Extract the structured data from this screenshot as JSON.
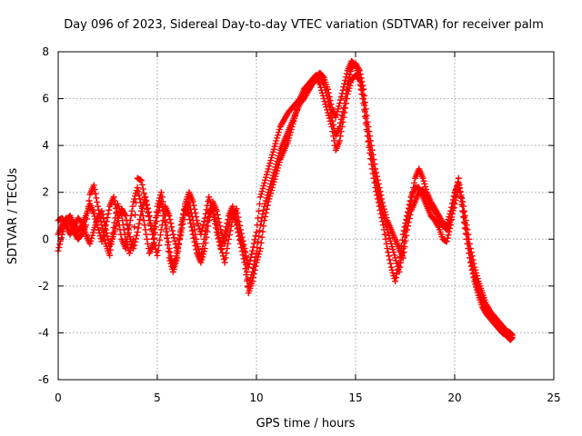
{
  "chart_data": {
    "type": "scatter",
    "title": "Day 096 of 2023, Sidereal Day-to-day VTEC variation (SDTVAR) for receiver palm",
    "xlabel": "GPS time / hours",
    "ylabel": "SDTVAR / TECUs",
    "xlim": [
      0,
      25
    ],
    "ylim": [
      -6,
      8
    ],
    "x_ticks": [
      "0",
      "5",
      "10",
      "15",
      "20",
      "25"
    ],
    "y_ticks": [
      "8",
      "6",
      "4",
      "2",
      "0",
      "-2",
      "-4",
      "-6"
    ],
    "grid": true,
    "marker": "+",
    "color": "#ff0000",
    "series": [
      {
        "name": "receiver palm",
        "trace_hours": [
          0.0,
          0.2,
          0.4,
          0.6,
          0.8,
          1.0,
          1.2,
          1.4,
          1.6,
          1.8,
          2.0,
          2.2,
          2.4,
          2.6,
          2.8,
          3.0,
          3.2,
          3.4,
          3.6,
          3.8,
          4.0,
          4.2,
          4.4,
          4.6,
          4.8,
          5.0,
          5.2,
          5.4,
          5.6,
          5.8,
          6.0,
          6.2,
          6.4,
          6.6,
          6.8,
          7.0,
          7.2,
          7.4,
          7.6,
          7.8,
          8.0,
          8.2,
          8.4,
          8.6,
          8.8,
          9.0,
          9.2,
          9.4,
          9.6,
          9.8,
          10.0,
          10.2,
          10.4,
          10.6,
          10.8,
          11.0,
          11.2,
          11.4,
          11.6,
          11.8,
          12.0,
          12.2,
          12.4,
          12.6,
          12.8,
          13.0,
          13.2,
          13.4,
          13.6,
          13.8,
          14.0,
          14.2,
          14.4,
          14.6,
          14.8,
          15.0,
          15.2,
          15.4,
          15.6,
          15.8,
          16.0,
          16.2,
          16.4,
          16.6,
          16.8,
          17.0,
          17.2,
          17.4,
          17.6,
          17.8,
          18.0,
          18.2,
          18.4,
          18.6,
          18.8,
          19.0,
          19.2,
          19.4,
          19.6,
          19.8,
          20.0,
          20.2,
          20.4,
          20.6,
          20.8,
          21.0,
          21.2,
          21.4,
          21.6,
          21.8,
          22.0,
          22.2,
          22.4,
          22.6,
          22.8,
          22.9
        ],
        "traces": [
          [
            0.8,
            0.9,
            0.6,
            0.2,
            0.5,
            0.9,
            0.7,
            0.2,
            -0.2,
            0.4,
            0.9,
            1.2,
            0.4,
            -0.3,
            0.2,
            0.8,
            1.3,
            1.0,
            0.1,
            -0.4,
            0.3,
            1.2,
            1.8,
            1.0,
            0.0,
            -0.7,
            0.4,
            1.4,
            1.0,
            0.2,
            -0.5,
            0.3,
            1.2,
            1.6,
            0.8,
            -0.2,
            -0.8,
            0.2,
            1.1,
            1.4,
            0.6,
            -0.3,
            -1.0,
            0.0,
            0.9,
            1.3,
            0.4,
            -0.4,
            -1.2,
            -0.5,
            0.3,
            1.8,
            2.4,
            3.0,
            3.6,
            4.2,
            4.8,
            5.1,
            5.4,
            5.6,
            5.8,
            6.0,
            6.2,
            6.4,
            6.6,
            6.8,
            7.0,
            6.6,
            6.0,
            5.2,
            4.4,
            4.8,
            5.6,
            6.6,
            7.3,
            7.5,
            7.2,
            6.4,
            5.0,
            4.0,
            3.0,
            2.2,
            1.4,
            0.8,
            0.4,
            0.0,
            -0.4,
            -0.8,
            0.4,
            1.2,
            1.6,
            2.0,
            2.1,
            1.8,
            1.4,
            1.2,
            0.9,
            0.6,
            0.4,
            0.8,
            1.5,
            2.3,
            1.6,
            0.6,
            -0.4,
            -1.2,
            -1.8,
            -2.3,
            -2.8,
            -3.1,
            -3.3,
            -3.5,
            -3.7,
            -3.9,
            -4.0,
            -4.1
          ],
          [
            0.2,
            0.6,
            0.9,
            0.7,
            0.3,
            0.0,
            0.2,
            0.6,
            1.9,
            2.3,
            1.4,
            0.6,
            -0.2,
            -0.7,
            0.5,
            1.5,
            1.0,
            0.0,
            -0.6,
            0.0,
            2.6,
            2.5,
            1.6,
            0.8,
            0.2,
            1.4,
            2.0,
            1.0,
            -0.4,
            -1.2,
            -0.6,
            0.4,
            1.5,
            2.0,
            1.6,
            0.8,
            0.2,
            0.9,
            1.8,
            1.2,
            0.3,
            -0.4,
            0.2,
            1.0,
            1.4,
            0.8,
            0.0,
            -0.5,
            -2.0,
            -1.4,
            -0.6,
            0.6,
            1.4,
            2.0,
            2.6,
            3.2,
            3.8,
            4.2,
            4.6,
            5.0,
            5.4,
            5.8,
            6.0,
            6.3,
            6.6,
            6.9,
            7.1,
            6.9,
            6.4,
            5.6,
            5.2,
            5.8,
            6.5,
            7.2,
            7.6,
            7.4,
            6.9,
            6.0,
            4.6,
            3.6,
            2.6,
            1.8,
            1.0,
            0.4,
            -0.2,
            -0.8,
            -1.4,
            -0.4,
            0.8,
            1.6,
            2.6,
            3.0,
            2.6,
            2.0,
            1.6,
            1.3,
            1.0,
            0.7,
            0.6,
            1.2,
            2.0,
            2.4,
            1.4,
            0.2,
            -0.8,
            -1.6,
            -2.2,
            -2.6,
            -2.9,
            -3.2,
            -3.5,
            -3.7,
            -3.9,
            -4.1,
            -4.2,
            -4.2
          ],
          [
            -0.5,
            0.2,
            0.8,
            1.0,
            0.6,
            0.3,
            0.6,
            1.0,
            1.5,
            1.1,
            0.5,
            -0.1,
            0.6,
            1.4,
            1.8,
            1.0,
            0.0,
            -0.4,
            0.6,
            1.6,
            2.2,
            1.4,
            0.4,
            -0.6,
            -0.2,
            1.0,
            1.6,
            0.6,
            -0.8,
            -1.4,
            -0.8,
            0.6,
            1.4,
            1.0,
            0.2,
            -0.6,
            -1.0,
            -0.4,
            0.8,
            1.6,
            1.2,
            0.4,
            -0.2,
            0.6,
            1.2,
            0.6,
            -0.2,
            -1.0,
            -2.3,
            -1.8,
            -1.0,
            -0.4,
            0.8,
            1.6,
            2.2,
            2.8,
            3.4,
            3.8,
            4.2,
            4.8,
            5.4,
            6.0,
            6.4,
            6.6,
            6.8,
            7.0,
            6.6,
            6.0,
            5.4,
            4.8,
            3.8,
            4.2,
            5.2,
            6.2,
            6.8,
            7.0,
            6.8,
            5.8,
            4.4,
            3.2,
            2.2,
            1.4,
            0.6,
            -0.4,
            -1.2,
            -1.8,
            -1.0,
            0.2,
            1.0,
            1.8,
            2.2,
            2.2,
            1.8,
            1.4,
            1.0,
            0.8,
            0.5,
            0.0,
            -0.1,
            0.6,
            1.8,
            2.6,
            1.2,
            0.0,
            -1.0,
            -1.8,
            -2.4,
            -2.9,
            -3.2,
            -3.4,
            -3.6,
            -3.8,
            -4.0,
            -4.1,
            -4.3,
            -4.2
          ]
        ]
      }
    ]
  }
}
